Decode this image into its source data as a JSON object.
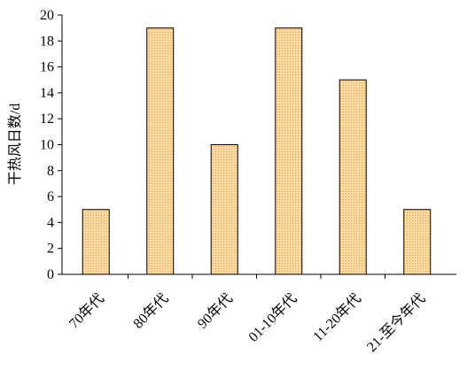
{
  "chart_data": {
    "type": "bar",
    "y_label": "干热风日数/d",
    "categories": [
      "70年代",
      "80年代",
      "90年代",
      "01-10年代",
      "11-20年代",
      "21-至今年代"
    ],
    "values": [
      5,
      19,
      10,
      19,
      15,
      5
    ],
    "color": "#f9c87e",
    "ylim": [
      0,
      20
    ],
    "yticks": [
      0,
      2,
      4,
      6,
      8,
      10,
      12,
      14,
      16,
      18,
      20
    ]
  }
}
